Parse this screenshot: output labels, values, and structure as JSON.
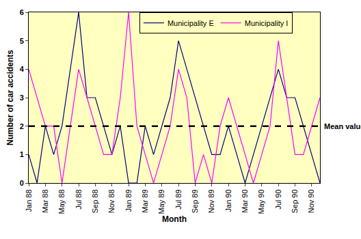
{
  "chart_data": {
    "type": "line",
    "x_label": "Month",
    "y_label": "Number of car accidents",
    "categories": [
      "Jan 88",
      null,
      "Mar 88",
      null,
      "May 88",
      null,
      "Jul 88",
      null,
      "Sep 88",
      null,
      "Nov 88",
      null,
      "Jan 89",
      null,
      "Mar 89",
      null,
      "May 89",
      null,
      "Jul 89",
      null,
      "Sep 89",
      null,
      "Nov 89",
      null,
      "Jan 90",
      null,
      "Mar 90",
      null,
      "May 90",
      null,
      "Jul 90",
      null,
      "Sep 90",
      null,
      "Nov 90",
      null
    ],
    "series": [
      {
        "name": "Municipality E",
        "color": "#000080",
        "values": [
          1,
          0,
          2,
          1,
          2,
          4,
          6,
          3,
          3,
          2,
          1,
          2,
          0,
          0,
          2,
          1,
          2,
          3,
          5,
          4,
          3,
          2,
          1,
          1,
          2,
          1,
          0,
          1,
          2,
          3,
          4,
          3,
          3,
          2,
          1,
          0
        ]
      },
      {
        "name": "Municipality I",
        "color": "#ff00ff",
        "values": [
          4,
          3,
          2,
          2,
          0,
          2,
          4,
          3,
          2,
          1,
          1,
          3,
          6,
          2,
          1,
          0,
          1,
          2,
          4,
          3,
          0,
          1,
          0,
          2,
          3,
          2,
          1,
          0,
          1,
          2,
          5,
          3,
          1,
          1,
          2,
          3
        ]
      }
    ],
    "annotations": [
      {
        "text": "Mean value",
        "y": 2,
        "color": "#000000",
        "line_style": "dashed"
      }
    ],
    "ylim": [
      0,
      6
    ],
    "yticks": [
      0,
      1,
      2,
      3,
      4,
      5,
      6
    ],
    "grid": false,
    "legend": "top"
  }
}
